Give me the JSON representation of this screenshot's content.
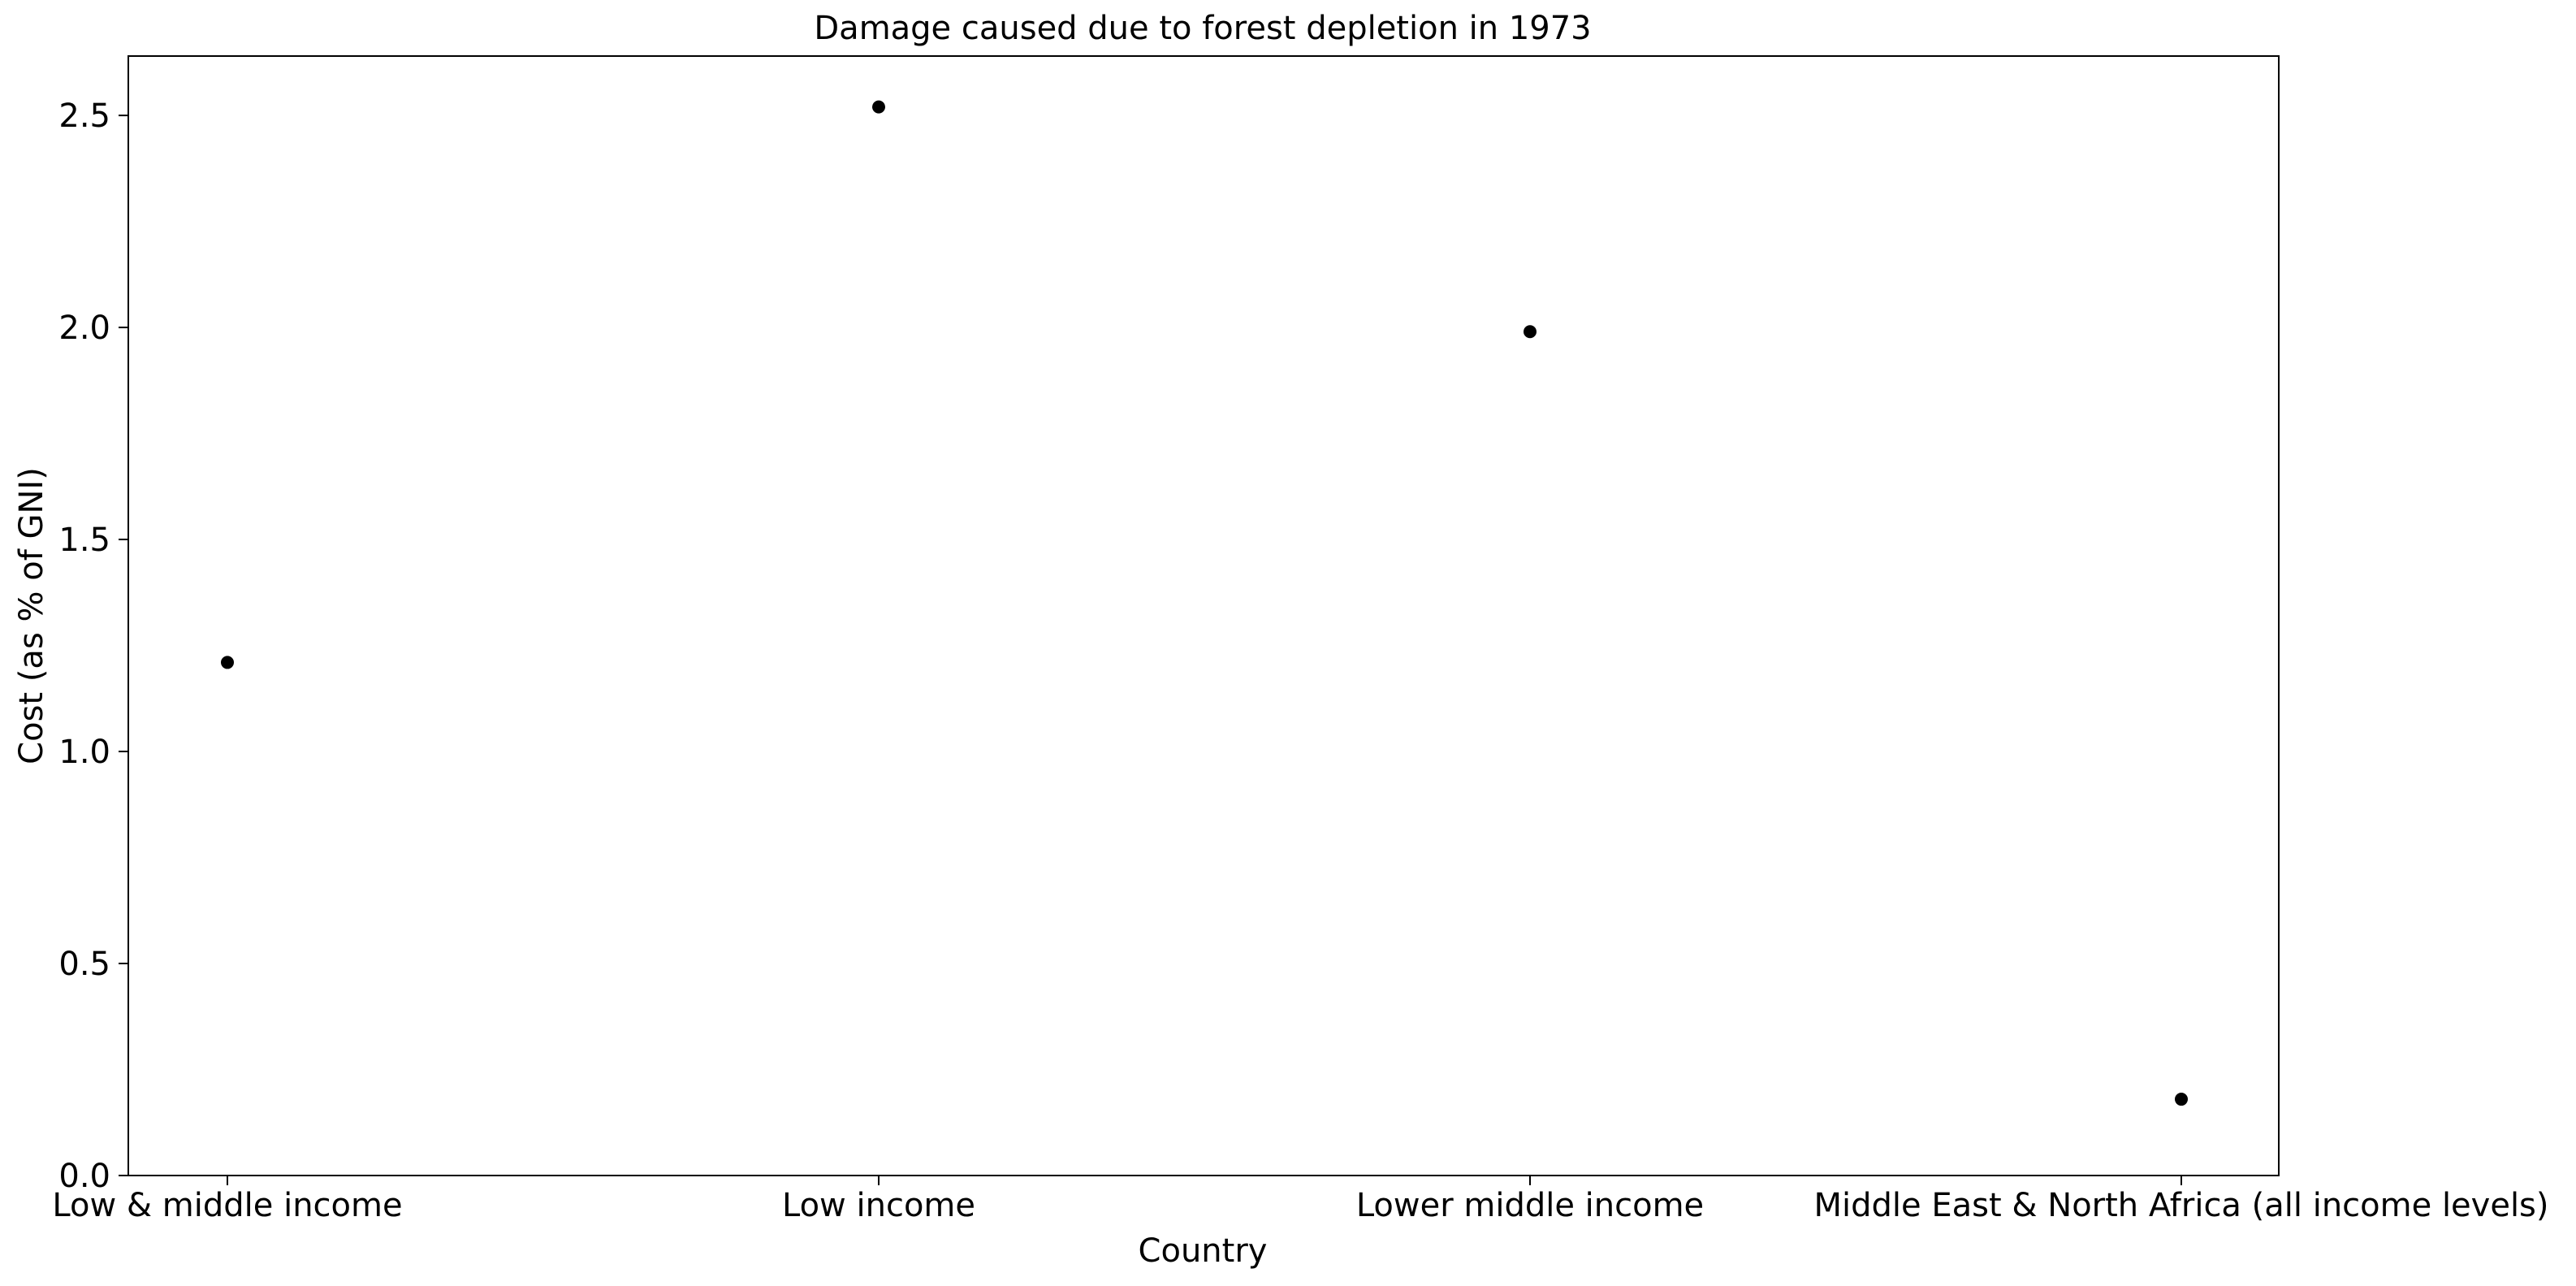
{
  "chart_data": {
    "type": "scatter",
    "title": "Damage caused due to forest depletion in 1973",
    "xlabel": "Country",
    "ylabel": "Cost (as % of GNI)",
    "categories": [
      "Low & middle income",
      "Low income",
      "Lower middle income",
      "Middle East & North Africa (all income levels)"
    ],
    "values": [
      1.21,
      2.52,
      1.99,
      0.18
    ],
    "ylim": [
      0,
      2.64
    ],
    "yticks": [
      0.0,
      0.5,
      1.0,
      1.5,
      2.0,
      2.5
    ],
    "ytick_labels": [
      "0.0",
      "0.5",
      "1.0",
      "1.5",
      "2.0",
      "2.5"
    ],
    "grid": false,
    "marker_color": "#000000"
  }
}
